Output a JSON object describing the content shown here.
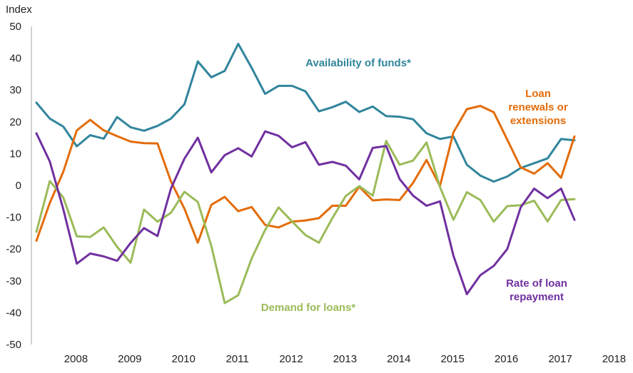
{
  "chart_data": {
    "type": "line",
    "title": "",
    "ylabel": "Index",
    "xlabel": "",
    "ylim": [
      -50,
      50
    ],
    "yticks": [
      50,
      40,
      30,
      20,
      10,
      0,
      -10,
      -20,
      -30,
      -40,
      -50
    ],
    "xticks": [
      "2008",
      "2009",
      "2010",
      "2011",
      "2012",
      "2013",
      "2014",
      "2015",
      "2016",
      "2017",
      "2018"
    ],
    "x_start": 2007.5,
    "x_step": 0.25,
    "grid": false,
    "series": [
      {
        "name": "Availability of funds*",
        "label_lines": [
          "Availability of funds*"
        ],
        "color": "#31859C",
        "values": [
          26,
          21,
          18.5,
          12.3,
          15.8,
          14.7,
          21.5,
          18.3,
          17.2,
          18.7,
          21,
          25.5,
          39,
          34,
          36,
          44.5,
          37,
          28.8,
          31.3,
          31.3,
          29.6,
          23.3,
          24.6,
          26.3,
          23.1,
          24.8,
          21.8,
          21.6,
          20.8,
          16.4,
          14.6,
          15.4,
          6.5,
          3.1,
          1.2,
          2.8,
          5.5,
          7,
          8.5,
          14.6,
          14.2
        ]
      },
      {
        "name": "Loan renewals or extensions",
        "label_lines": [
          "Loan",
          "renewals or",
          "extensions"
        ],
        "color": "#E36C0A",
        "values": [
          -17.4,
          -5.5,
          4.3,
          17.3,
          20.6,
          17.3,
          15.5,
          13.8,
          13.3,
          13.2,
          1.3,
          -7.3,
          -18,
          -6.1,
          -3.6,
          -8.1,
          -6.8,
          -12.4,
          -13.2,
          -11.4,
          -11,
          -10.3,
          -6.4,
          -6.4,
          -0.4,
          -4.7,
          -4.4,
          -4.6,
          0.8,
          8,
          -0.2,
          16.7,
          24,
          25,
          23,
          14.4,
          5.7,
          3.7,
          7,
          2.4,
          15.4
        ]
      },
      {
        "name": "Demand for loans*",
        "label_lines": [
          "Demand for loans*"
        ],
        "color": "#9BBB59",
        "values": [
          -14.6,
          1.4,
          -3.8,
          -16,
          -16.2,
          -13.2,
          -19.3,
          -24.3,
          -7.6,
          -11.4,
          -8.6,
          -2,
          -5.2,
          -19,
          -37,
          -34.5,
          -23,
          -14,
          -6.9,
          -11.3,
          -15.6,
          -18,
          -10.3,
          -3.3,
          -0.2,
          -3.2,
          14,
          6.5,
          7.8,
          13.5,
          -0.5,
          -10.8,
          -2.1,
          -4.6,
          -11.4,
          -6.5,
          -6.2,
          -4.8,
          -11.3,
          -4.6,
          -4.3
        ]
      },
      {
        "name": "Rate of loan repayment",
        "label_lines": [
          "Rate of loan",
          "repayment"
        ],
        "color": "#7030A0",
        "values": [
          16.4,
          7.5,
          -7.5,
          -24.6,
          -21.4,
          -22.3,
          -23.7,
          -18.1,
          -13.4,
          -15.9,
          -1,
          8.4,
          15,
          4.1,
          9.5,
          11.7,
          9.1,
          17,
          15.6,
          12,
          13.6,
          6.5,
          7.4,
          6.2,
          1.9,
          11.8,
          12.4,
          2,
          -3.2,
          -6.4,
          -5,
          -22.1,
          -34.2,
          -28.2,
          -25.3,
          -20,
          -6.9,
          -1,
          -4,
          -1,
          -10.8
        ]
      }
    ]
  }
}
